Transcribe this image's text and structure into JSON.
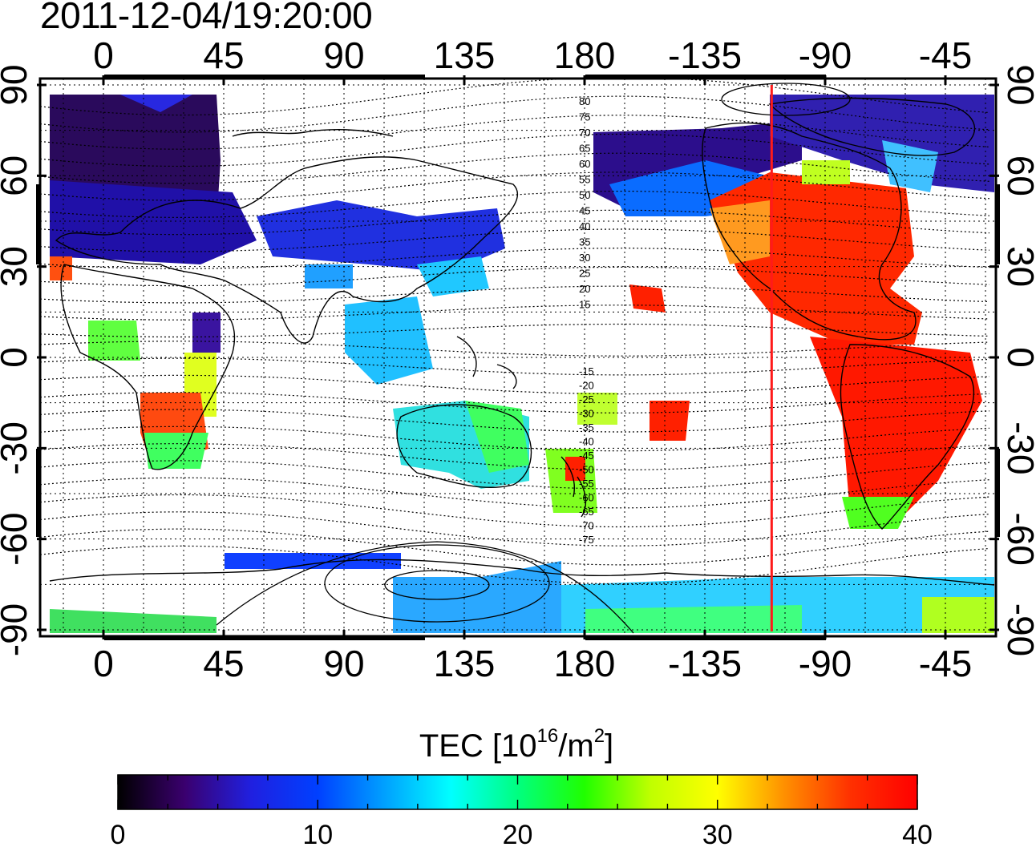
{
  "timestamp": "2011-12-04/19:20:00",
  "map": {
    "x_ticks": [
      "0",
      "45",
      "90",
      "135",
      "180",
      "-135",
      "-90",
      "-45"
    ],
    "y_ticks": [
      "90",
      "60",
      "30",
      "0",
      "-30",
      "-60",
      "-90"
    ],
    "contour_labels": [
      "80",
      "75",
      "70",
      "65",
      "60",
      "55",
      "50",
      "45",
      "40",
      "35",
      "30",
      "25",
      "20",
      "15",
      "-15",
      "-20",
      "-25",
      "-30",
      "-35",
      "-40",
      "-45",
      "-50",
      "-55",
      "-60",
      "-65",
      "-70",
      "-75"
    ],
    "noon_meridian_lon": -110,
    "noon_meridian_color": "#ff1a1a"
  },
  "colorbar": {
    "title_prefix": "TEC  [10",
    "title_exp1": "16",
    "title_mid": "/m",
    "title_exp2": "2",
    "title_suffix": "]",
    "ticks": [
      "0",
      "10",
      "20",
      "30",
      "40"
    ],
    "min": 0,
    "max": 40,
    "colors": [
      "#000000",
      "#3a006e",
      "#2020e0",
      "#0040ff",
      "#00a0ff",
      "#00ffff",
      "#00ff80",
      "#20ff00",
      "#c0ff00",
      "#ffff00",
      "#ff9000",
      "#ff3000",
      "#ff0000"
    ]
  }
}
